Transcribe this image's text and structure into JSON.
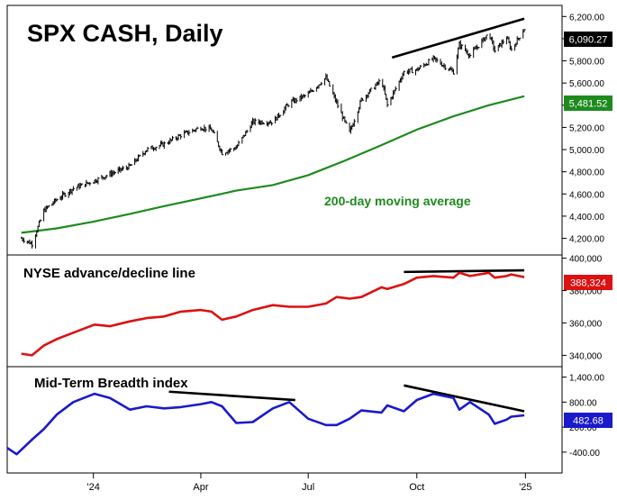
{
  "chart_data": [
    {
      "type": "line",
      "title": "SPX CASH, Daily",
      "annotation": "200-day moving average",
      "ylim": [
        4050,
        6300
      ],
      "y_ticks": [
        4200,
        4400,
        4600,
        4800,
        5000,
        5200,
        5400,
        5600,
        5800,
        6000,
        6200
      ],
      "y_tick_labels": [
        "4,200.00",
        "4,400.00",
        "4,600.00",
        "4,800.00",
        "5,000.00",
        "5,200.00",
        "5,400.00",
        "5,600.00",
        "5,800.00",
        "6,000.00",
        "6,200.00"
      ],
      "last_value_label": "6,090.27",
      "ma_value_label": "5,481.52",
      "price_series": {
        "style": "ohlc-bars",
        "color": "#000000",
        "x": [
          "2023-11-01",
          "2023-11-10",
          "2023-11-20",
          "2023-12-01",
          "2023-12-15",
          "2024-01-02",
          "2024-01-15",
          "2024-02-01",
          "2024-02-15",
          "2024-03-01",
          "2024-03-15",
          "2024-04-01",
          "2024-04-10",
          "2024-04-19",
          "2024-05-01",
          "2024-05-15",
          "2024-06-01",
          "2024-06-15",
          "2024-07-01",
          "2024-07-16",
          "2024-07-25",
          "2024-08-05",
          "2024-08-15",
          "2024-09-01",
          "2024-09-06",
          "2024-09-20",
          "2024-10-01",
          "2024-10-15",
          "2024-11-01",
          "2024-11-06",
          "2024-11-15",
          "2024-12-01",
          "2024-12-06",
          "2024-12-16",
          "2024-12-20",
          "2024-12-31"
        ],
        "y": [
          4200,
          4150,
          4450,
          4550,
          4650,
          4720,
          4780,
          4850,
          5000,
          5050,
          5130,
          5200,
          5180,
          4970,
          5020,
          5250,
          5250,
          5420,
          5500,
          5650,
          5420,
          5150,
          5450,
          5630,
          5400,
          5700,
          5720,
          5820,
          5700,
          5950,
          5850,
          6050,
          5890,
          6010,
          5900,
          6090
        ]
      },
      "ma_series": {
        "name": "200-day moving average",
        "color": "#1e8a1e",
        "x": [
          "2023-11-01",
          "2023-12-01",
          "2024-01-01",
          "2024-02-01",
          "2024-03-01",
          "2024-04-01",
          "2024-05-01",
          "2024-06-01",
          "2024-07-01",
          "2024-08-01",
          "2024-09-01",
          "2024-10-01",
          "2024-11-01",
          "2024-12-01",
          "2024-12-31"
        ],
        "y": [
          4250,
          4290,
          4350,
          4420,
          4490,
          4560,
          4630,
          4680,
          4770,
          4900,
          5040,
          5180,
          5300,
          5400,
          5481.52
        ]
      },
      "trendlines": [
        {
          "x": [
            "2024-09-10",
            "2024-12-31"
          ],
          "y": [
            5830,
            6180
          ]
        }
      ]
    },
    {
      "type": "line",
      "title": "NYSE advance/decline line",
      "ylim": [
        333000,
        402000
      ],
      "y_ticks": [
        340000,
        360000,
        380000,
        400000
      ],
      "y_tick_labels": [
        "340,000",
        "360,000",
        "380,000",
        "400,000"
      ],
      "last_value_label": "388,324",
      "series": [
        {
          "color": "#dd1111",
          "x": [
            "2023-11-01",
            "2023-11-10",
            "2023-11-20",
            "2023-12-01",
            "2023-12-15",
            "2024-01-02",
            "2024-01-15",
            "2024-02-01",
            "2024-02-15",
            "2024-03-01",
            "2024-03-15",
            "2024-04-01",
            "2024-04-10",
            "2024-04-19",
            "2024-05-01",
            "2024-05-15",
            "2024-06-01",
            "2024-06-15",
            "2024-07-01",
            "2024-07-16",
            "2024-07-25",
            "2024-08-05",
            "2024-08-15",
            "2024-09-01",
            "2024-09-06",
            "2024-09-20",
            "2024-10-01",
            "2024-10-15",
            "2024-11-01",
            "2024-11-06",
            "2024-11-15",
            "2024-12-01",
            "2024-12-06",
            "2024-12-16",
            "2024-12-20",
            "2024-12-31"
          ],
          "y": [
            341000,
            340000,
            346000,
            350000,
            354000,
            359000,
            358000,
            361000,
            363000,
            364000,
            367000,
            368000,
            367000,
            362000,
            364000,
            368000,
            371000,
            370000,
            370000,
            372000,
            376000,
            375000,
            376000,
            382000,
            381000,
            384000,
            388000,
            389000,
            388000,
            391000,
            389000,
            391000,
            388000,
            389000,
            390000,
            388324
          ]
        }
      ],
      "trendlines": [
        {
          "x": [
            "2024-09-20",
            "2024-12-31"
          ],
          "y": [
            391500,
            392500
          ]
        }
      ]
    },
    {
      "type": "line",
      "title": "Mid-Term Breadth index",
      "ylim": [
        -900,
        1650
      ],
      "y_ticks": [
        -400,
        200,
        800,
        1400
      ],
      "y_tick_labels": [
        "-400.00",
        "200.00",
        "800.00",
        "1,400.00"
      ],
      "last_value_label": "482.68",
      "series": [
        {
          "color": "#1a1acc",
          "x": [
            "2023-10-20",
            "2023-10-28",
            "2023-11-10",
            "2023-11-20",
            "2023-12-01",
            "2023-12-15",
            "2024-01-02",
            "2024-01-15",
            "2024-02-01",
            "2024-02-15",
            "2024-03-01",
            "2024-03-15",
            "2024-04-01",
            "2024-04-10",
            "2024-04-19",
            "2024-05-01",
            "2024-05-15",
            "2024-06-01",
            "2024-06-15",
            "2024-07-01",
            "2024-07-16",
            "2024-07-25",
            "2024-08-05",
            "2024-08-15",
            "2024-09-01",
            "2024-09-06",
            "2024-09-20",
            "2024-10-01",
            "2024-10-15",
            "2024-11-01",
            "2024-11-06",
            "2024-11-15",
            "2024-12-01",
            "2024-12-06",
            "2024-12-16",
            "2024-12-20",
            "2024-12-31"
          ],
          "y": [
            -300,
            -450,
            -100,
            150,
            500,
            800,
            1000,
            900,
            620,
            700,
            650,
            680,
            750,
            800,
            700,
            300,
            320,
            650,
            800,
            400,
            250,
            250,
            400,
            600,
            550,
            720,
            580,
            850,
            1000,
            900,
            620,
            800,
            500,
            280,
            380,
            450,
            482.68
          ]
        }
      ],
      "trendlines": [
        {
          "x": [
            "2024-03-05",
            "2024-06-20"
          ],
          "y": [
            1050,
            850
          ]
        },
        {
          "x": [
            "2024-09-20",
            "2024-12-31"
          ],
          "y": [
            1200,
            580
          ]
        }
      ]
    }
  ],
  "x_axis": {
    "ticks": [
      "2024-01-01",
      "2024-04-01",
      "2024-07-01",
      "2024-10-01",
      "2025-01-01"
    ],
    "labels": [
      "'24",
      "Apr",
      "Jul",
      "Oct",
      "'25"
    ]
  }
}
